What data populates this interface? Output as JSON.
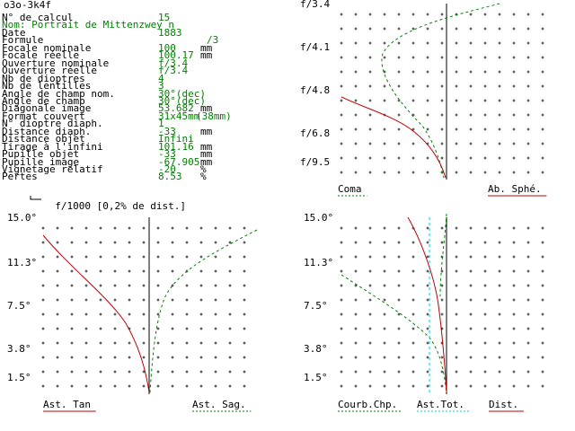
{
  "window_title": "o3o-3k4f",
  "params": [
    {
      "label": "N° de calcul",
      "value": "15",
      "unit": ""
    },
    {
      "label": "Nom: Portrait de Mittenzwey n",
      "value": "",
      "unit": "",
      "label_green": true
    },
    {
      "label": "Date",
      "value": "1883",
      "unit": ""
    },
    {
      "label": "Formule",
      "value": "/3",
      "unit": ""
    },
    {
      "label": "Focale nominale",
      "value": "100",
      "unit": "mm"
    },
    {
      "label": "Focale réelle",
      "value": "100.17",
      "unit": "mm"
    },
    {
      "label": "Ouverture nominale",
      "value": "f/3.4",
      "unit": ""
    },
    {
      "label": "Ouverture réelle",
      "value": "f/3.4",
      "unit": ""
    },
    {
      "label": "Nb de dioptres",
      "value": "4",
      "unit": ""
    },
    {
      "label": "Nb de lentilles",
      "value": "3",
      "unit": ""
    },
    {
      "label": "Angle de champ nom.",
      "value": "30°(dec)",
      "unit": ""
    },
    {
      "label": "Angle de champ",
      "value": "30°(dec)",
      "unit": ""
    },
    {
      "label": "Diagonale image",
      "value": "53.682",
      "unit": "mm"
    },
    {
      "label": "Format couvert",
      "value": "31x45mm",
      "unit": "(38mm)"
    },
    {
      "label": "N° dioptre diaph.",
      "value": "1",
      "unit": ""
    },
    {
      "label": "Distance diaph.",
      "value": "-33",
      "unit": "mm"
    },
    {
      "label": "Distance objet",
      "value": "Infini",
      "unit": ""
    },
    {
      "label": "Tirage à l'infini",
      "value": "101.16",
      "unit": "mm"
    },
    {
      "label": "Pupille objet",
      "value": "-33",
      "unit": "mm"
    },
    {
      "label": "Pupille image",
      "value": "-67.905",
      "unit": "mm"
    },
    {
      "label": "Vignetage relatif",
      "value": "-20",
      "unit": "%"
    },
    {
      "label": "Pertes",
      "value": "8.53",
      "unit": "%"
    }
  ],
  "scale_label": "f/1000 [0,2% de dist.]",
  "chart_data": [
    {
      "type": "line",
      "name": "coma-spherical",
      "y_ticks": [
        "f/3.4",
        "f/4.1",
        "f/4.8",
        "f/6.8",
        "f/9.5"
      ],
      "series": [
        {
          "name": "Coma",
          "color": "#008000",
          "dashed": true
        },
        {
          "name": "Ab. Sphé.",
          "color": "#c00000",
          "dashed": false
        }
      ]
    },
    {
      "type": "line",
      "name": "astigmatism",
      "y_ticks": [
        "15.0°",
        "11.3°",
        "7.5°",
        "3.8°",
        "1.5°"
      ],
      "series": [
        {
          "name": "Ast. Tan",
          "color": "#c00000",
          "dashed": false
        },
        {
          "name": "Ast. Sag.",
          "color": "#008000",
          "dashed": true
        }
      ]
    },
    {
      "type": "line",
      "name": "field-curvature",
      "y_ticks": [
        "15.0°",
        "11.3°",
        "7.5°",
        "3.8°",
        "1.5°"
      ],
      "series": [
        {
          "name": "Courb.Chp.",
          "color": "#008000",
          "dashed": true
        },
        {
          "name": "Ast.Tot.",
          "color": "#00cccc",
          "dashed": true
        },
        {
          "name": "Dist.",
          "color": "#c00000",
          "dashed": false
        }
      ]
    }
  ]
}
